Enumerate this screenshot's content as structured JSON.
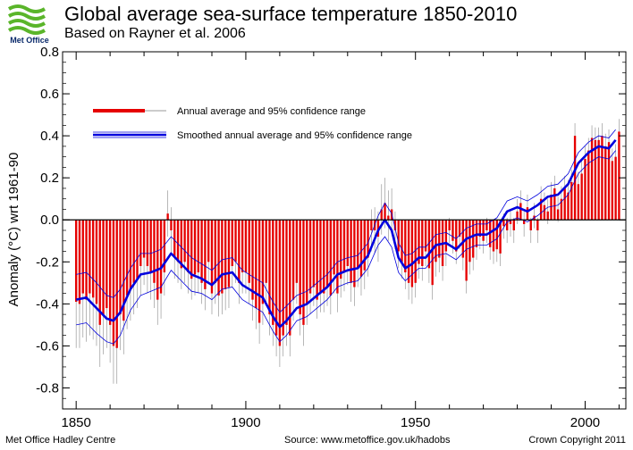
{
  "header": {
    "logo_text": "Met Office",
    "title": "Global average sea-surface temperature 1850-2010",
    "subtitle": "Based on Rayner et al. 2006"
  },
  "footer": {
    "left": "Met Office Hadley Centre",
    "middle": "Source: www.metoffice.gov.uk/hadobs",
    "right": "Crown Copyright 2011"
  },
  "colors": {
    "bars": "#e60000",
    "smooth": "#0000dd",
    "error": "#999999",
    "logo": "#5ab52a"
  },
  "chart_data": {
    "type": "bar",
    "ylabel": "Anomaly (°C) wrt 1961-90",
    "xlim": [
      1846,
      2012
    ],
    "ylim": [
      -0.9,
      0.8
    ],
    "xticks": [
      "1850",
      "1900",
      "1950",
      "2000"
    ],
    "yticks": [
      "0.8",
      "0.6",
      "0.4",
      "0.2",
      "0.0",
      "-0.2",
      "-0.4",
      "-0.6",
      "-0.8"
    ],
    "zero_line": true,
    "legend": {
      "placement": "upper-left",
      "entries": [
        "Annual average and 95% confidence range",
        "Smoothed annual average and 95% confidence range"
      ]
    },
    "series": [
      {
        "name": "Annual average and 95% confidence range",
        "x_start": 1850,
        "values": [
          -0.39,
          -0.4,
          -0.35,
          -0.38,
          -0.35,
          -0.37,
          -0.4,
          -0.5,
          -0.45,
          -0.42,
          -0.5,
          -0.6,
          -0.61,
          -0.45,
          -0.48,
          -0.36,
          -0.33,
          -0.3,
          -0.28,
          -0.22,
          -0.18,
          -0.22,
          -0.25,
          -0.3,
          -0.38,
          -0.35,
          -0.25,
          0.03,
          -0.05,
          -0.18,
          -0.2,
          -0.23,
          -0.2,
          -0.25,
          -0.28,
          -0.26,
          -0.25,
          -0.3,
          -0.33,
          -0.2,
          -0.35,
          -0.3,
          -0.36,
          -0.35,
          -0.33,
          -0.32,
          -0.22,
          -0.2,
          -0.3,
          -0.25,
          -0.25,
          -0.3,
          -0.38,
          -0.42,
          -0.49,
          -0.4,
          -0.3,
          -0.45,
          -0.5,
          -0.55,
          -0.6,
          -0.55,
          -0.5,
          -0.55,
          -0.38,
          -0.3,
          -0.45,
          -0.5,
          -0.4,
          -0.35,
          -0.32,
          -0.38,
          -0.35,
          -0.35,
          -0.32,
          -0.36,
          -0.26,
          -0.35,
          -0.28,
          -0.25,
          -0.22,
          -0.3,
          -0.32,
          -0.23,
          -0.27,
          -0.24,
          -0.18,
          -0.05,
          -0.05,
          -0.08,
          0.05,
          0.08,
          0.02,
          0.05,
          -0.05,
          -0.15,
          -0.2,
          -0.25,
          -0.3,
          -0.32,
          -0.3,
          -0.21,
          -0.22,
          -0.15,
          -0.23,
          -0.31,
          -0.2,
          -0.18,
          -0.22,
          -0.15,
          -0.05,
          -0.1,
          -0.15,
          -0.08,
          -0.18,
          -0.29,
          -0.2,
          -0.18,
          -0.13,
          -0.08,
          -0.1,
          -0.05,
          -0.13,
          -0.15,
          -0.14,
          -0.16,
          -0.03,
          -0.05,
          -0.02,
          -0.05,
          0.04,
          0.08,
          -0.02,
          0.06,
          -0.05,
          0.02,
          -0.05,
          0.1,
          0.07,
          0.04,
          0.12,
          0.15,
          0.05,
          0.1,
          0.15,
          0.13,
          0.18,
          0.4,
          0.17,
          0.22,
          0.29,
          0.33,
          0.39,
          0.38,
          0.38,
          0.4,
          0.35,
          0.37,
          0.28,
          0.3,
          0.42
        ],
        "ci_halfwidth": [
          0.22,
          0.21,
          0.21,
          0.2,
          0.2,
          0.2,
          0.2,
          0.2,
          0.19,
          0.19,
          0.18,
          0.18,
          0.17,
          0.17,
          0.16,
          0.16,
          0.15,
          0.15,
          0.14,
          0.14,
          0.13,
          0.13,
          0.13,
          0.12,
          0.12,
          0.12,
          0.11,
          0.11,
          0.11,
          0.1,
          0.1,
          0.1,
          0.1,
          0.1,
          0.1,
          0.1,
          0.1,
          0.1,
          0.1,
          0.1,
          0.1,
          0.1,
          0.1,
          0.1,
          0.1,
          0.1,
          0.1,
          0.1,
          0.1,
          0.1,
          0.1,
          0.1,
          0.1,
          0.1,
          0.1,
          0.1,
          0.1,
          0.1,
          0.1,
          0.1,
          0.1,
          0.1,
          0.1,
          0.1,
          0.1,
          0.1,
          0.1,
          0.1,
          0.1,
          0.1,
          0.09,
          0.09,
          0.09,
          0.09,
          0.09,
          0.09,
          0.09,
          0.09,
          0.09,
          0.09,
          0.09,
          0.09,
          0.09,
          0.09,
          0.09,
          0.09,
          0.09,
          0.1,
          0.11,
          0.12,
          0.12,
          0.12,
          0.12,
          0.1,
          0.09,
          0.08,
          0.08,
          0.08,
          0.08,
          0.08,
          0.07,
          0.07,
          0.07,
          0.07,
          0.07,
          0.07,
          0.07,
          0.07,
          0.07,
          0.07,
          0.06,
          0.06,
          0.06,
          0.06,
          0.06,
          0.06,
          0.06,
          0.06,
          0.06,
          0.06,
          0.06,
          0.06,
          0.06,
          0.06,
          0.06,
          0.06,
          0.06,
          0.06,
          0.06,
          0.06,
          0.06,
          0.06,
          0.06,
          0.06,
          0.06,
          0.06,
          0.06,
          0.06,
          0.06,
          0.06,
          0.06,
          0.06,
          0.06,
          0.06,
          0.06,
          0.06,
          0.06,
          0.06,
          0.06,
          0.06,
          0.06,
          0.06,
          0.06,
          0.06,
          0.06,
          0.06,
          0.06,
          0.06,
          0.06,
          0.06,
          0.06
        ]
      },
      {
        "name": "Smoothed annual average and 95% confidence range",
        "x": [
          1850,
          1853,
          1856,
          1859,
          1861,
          1863,
          1866,
          1869,
          1872,
          1875,
          1878,
          1881,
          1884,
          1887,
          1890,
          1893,
          1896,
          1899,
          1902,
          1905,
          1908,
          1910,
          1912,
          1915,
          1918,
          1921,
          1924,
          1927,
          1930,
          1933,
          1936,
          1939,
          1941,
          1943,
          1945,
          1947,
          1949,
          1951,
          1953,
          1956,
          1959,
          1962,
          1965,
          1968,
          1971,
          1974,
          1977,
          1980,
          1983,
          1986,
          1989,
          1992,
          1995,
          1998,
          2001,
          2004,
          2007,
          2009
        ],
        "values": [
          -0.38,
          -0.37,
          -0.42,
          -0.47,
          -0.48,
          -0.44,
          -0.33,
          -0.26,
          -0.25,
          -0.23,
          -0.16,
          -0.21,
          -0.26,
          -0.28,
          -0.31,
          -0.26,
          -0.25,
          -0.31,
          -0.34,
          -0.37,
          -0.46,
          -0.51,
          -0.48,
          -0.42,
          -0.4,
          -0.36,
          -0.32,
          -0.26,
          -0.24,
          -0.23,
          -0.17,
          -0.05,
          0.0,
          -0.05,
          -0.18,
          -0.23,
          -0.21,
          -0.18,
          -0.18,
          -0.12,
          -0.11,
          -0.14,
          -0.09,
          -0.07,
          -0.07,
          -0.04,
          0.04,
          0.06,
          0.04,
          0.07,
          0.11,
          0.12,
          0.17,
          0.27,
          0.32,
          0.35,
          0.34,
          0.38
        ],
        "ci_halfwidth": [
          0.12,
          0.12,
          0.12,
          0.11,
          0.11,
          0.11,
          0.1,
          0.1,
          0.09,
          0.09,
          0.08,
          0.08,
          0.08,
          0.07,
          0.07,
          0.07,
          0.07,
          0.07,
          0.07,
          0.07,
          0.07,
          0.07,
          0.07,
          0.06,
          0.06,
          0.06,
          0.06,
          0.06,
          0.06,
          0.06,
          0.06,
          0.07,
          0.08,
          0.08,
          0.07,
          0.06,
          0.05,
          0.05,
          0.05,
          0.05,
          0.05,
          0.05,
          0.05,
          0.05,
          0.05,
          0.05,
          0.05,
          0.05,
          0.05,
          0.05,
          0.05,
          0.05,
          0.05,
          0.05,
          0.05,
          0.05,
          0.05,
          0.05
        ]
      }
    ]
  }
}
